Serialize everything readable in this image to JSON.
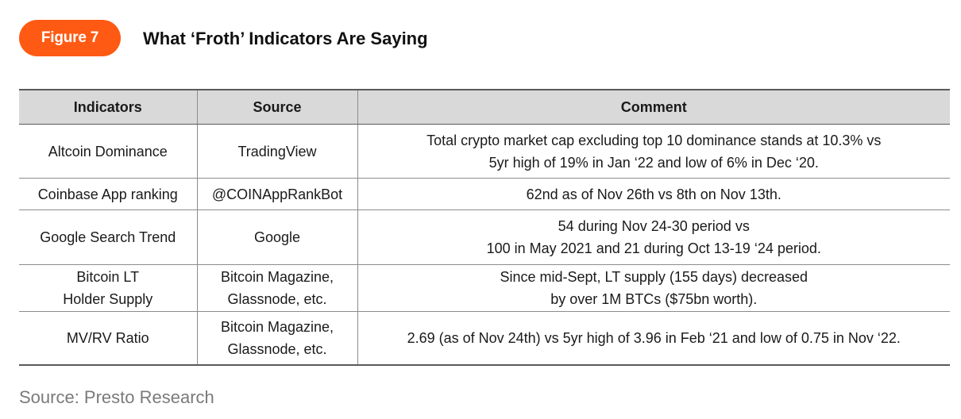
{
  "figure": {
    "badge": "Figure 7",
    "title": "What ‘Froth’ Indicators Are Saying"
  },
  "table": {
    "headers": [
      "Indicators",
      "Source",
      "Comment"
    ],
    "rows": [
      {
        "indicator": [
          "Altcoin Dominance"
        ],
        "source": [
          "TradingView"
        ],
        "comment": [
          "Total crypto market cap excluding top 10 dominance stands at 10.3% vs",
          "5yr high of 19% in Jan ‘22 and low of 6% in Dec ‘20."
        ]
      },
      {
        "indicator": [
          "Coinbase App ranking"
        ],
        "source": [
          "@COINAppRankBot"
        ],
        "comment": [
          "62nd as of Nov 26th vs 8th on Nov 13th."
        ]
      },
      {
        "indicator": [
          "Google Search Trend"
        ],
        "source": [
          "Google"
        ],
        "comment": [
          "54 during Nov 24-30 period vs",
          "100 in May 2021 and 21 during Oct 13-19 ‘24 period."
        ]
      },
      {
        "indicator": [
          "Bitcoin LT",
          "Holder Supply"
        ],
        "source": [
          "Bitcoin Magazine,",
          "Glassnode, etc."
        ],
        "comment": [
          "Since mid-Sept, LT supply (155 days) decreased",
          "by over 1M BTCs ($75bn worth)."
        ]
      },
      {
        "indicator": [
          "MV/RV Ratio"
        ],
        "source": [
          "Bitcoin Magazine,",
          "Glassnode, etc."
        ],
        "comment": [
          "2.69 (as of Nov 24th) vs 5yr high of 3.96 in Feb ‘21 and low of 0.75 in Nov ‘22."
        ]
      }
    ]
  },
  "footer": {
    "source_note": "Source: Presto Research"
  },
  "colors": {
    "badge_bg": "#ff5a14",
    "header_bg": "#d9d9d9",
    "source_text": "#7a7a7a"
  }
}
